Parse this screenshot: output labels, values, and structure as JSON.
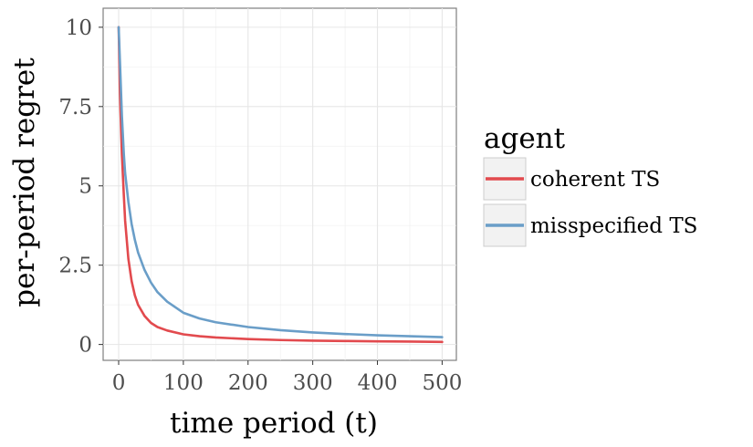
{
  "chart_data": {
    "type": "line",
    "xlabel": "time period (t)",
    "ylabel": "per-period regret",
    "xlim": [
      -24,
      522
    ],
    "ylim": [
      -0.5,
      10.6
    ],
    "xticks": [
      0,
      100,
      200,
      300,
      400,
      500
    ],
    "yticks": [
      0,
      2.5,
      5,
      7.5,
      10
    ],
    "ytick_labels": [
      "0",
      "2.5",
      "5",
      "7.5",
      "10"
    ],
    "grid": true,
    "legend": {
      "title": "agent",
      "position": "right"
    },
    "series": [
      {
        "name": "coherent TS",
        "color": "#e24a4e",
        "x": [
          0,
          2,
          5,
          8,
          10,
          15,
          20,
          25,
          30,
          40,
          50,
          60,
          75,
          100,
          125,
          150,
          200,
          250,
          300,
          350,
          400,
          450,
          500
        ],
        "y": [
          10.0,
          7.9,
          6.0,
          4.7,
          3.9,
          2.7,
          2.0,
          1.55,
          1.25,
          0.9,
          0.68,
          0.55,
          0.44,
          0.32,
          0.26,
          0.22,
          0.17,
          0.14,
          0.12,
          0.11,
          0.1,
          0.09,
          0.08
        ]
      },
      {
        "name": "misspecified TS",
        "color": "#6a9ec8",
        "x": [
          0,
          2,
          5,
          8,
          10,
          15,
          20,
          25,
          30,
          40,
          50,
          60,
          75,
          100,
          125,
          150,
          200,
          250,
          300,
          350,
          400,
          450,
          500
        ],
        "y": [
          10.0,
          8.9,
          7.2,
          6.0,
          5.4,
          4.5,
          3.8,
          3.3,
          2.9,
          2.35,
          1.95,
          1.65,
          1.35,
          1.0,
          0.82,
          0.7,
          0.55,
          0.45,
          0.38,
          0.33,
          0.29,
          0.26,
          0.23
        ]
      }
    ]
  }
}
